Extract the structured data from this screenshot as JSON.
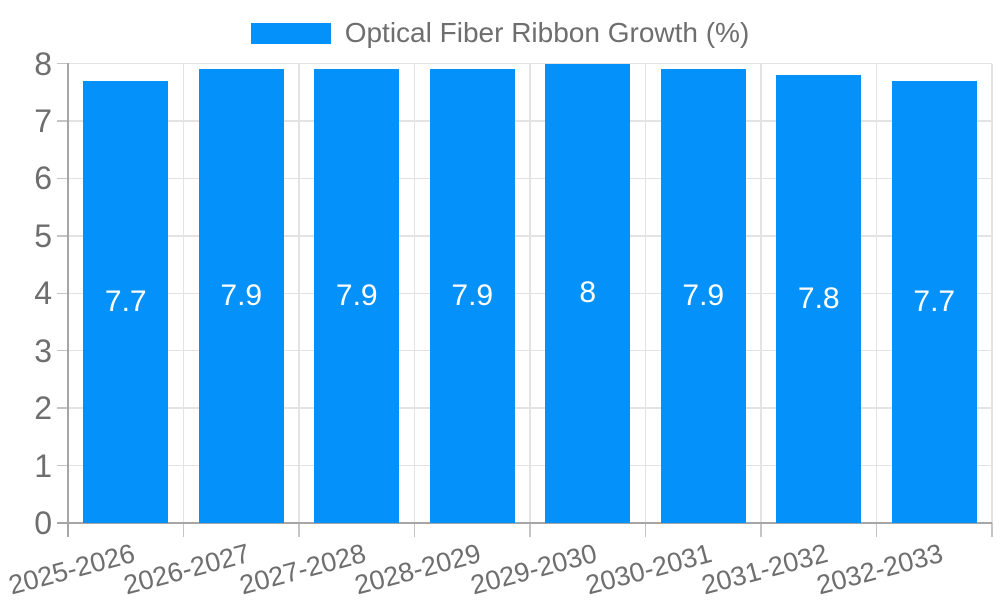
{
  "legend": {
    "label": "Optical Fiber Ribbon Growth (%)"
  },
  "colors": {
    "bar": "#0591fa",
    "grid": "#e3e3e3",
    "axis": "#a6a6a6",
    "tick": "#c4c4c4",
    "text": "#6e6e6e",
    "value_label": "#ffffff",
    "background": "#ffffff"
  },
  "chart_data": {
    "type": "bar",
    "title": "Optical Fiber Ribbon Growth (%)",
    "series_name": "Optical Fiber Ribbon Growth (%)",
    "categories": [
      "2025-2026",
      "2026-2027",
      "2027-2028",
      "2028-2029",
      "2029-2030",
      "2030-2031",
      "2031-2032",
      "2032-2033"
    ],
    "values": [
      7.7,
      7.9,
      7.9,
      7.9,
      8,
      7.9,
      7.8,
      7.7
    ],
    "value_labels": [
      "7.7",
      "7.9",
      "7.9",
      "7.9",
      "8",
      "7.9",
      "7.8",
      "7.7"
    ],
    "xlabel": "",
    "ylabel": "",
    "ylim": [
      0,
      8
    ],
    "yticks": [
      0,
      1,
      2,
      3,
      4,
      5,
      6,
      7,
      8
    ],
    "grid": true,
    "legend_position": "top-center",
    "x_label_rotation_deg": -15
  }
}
